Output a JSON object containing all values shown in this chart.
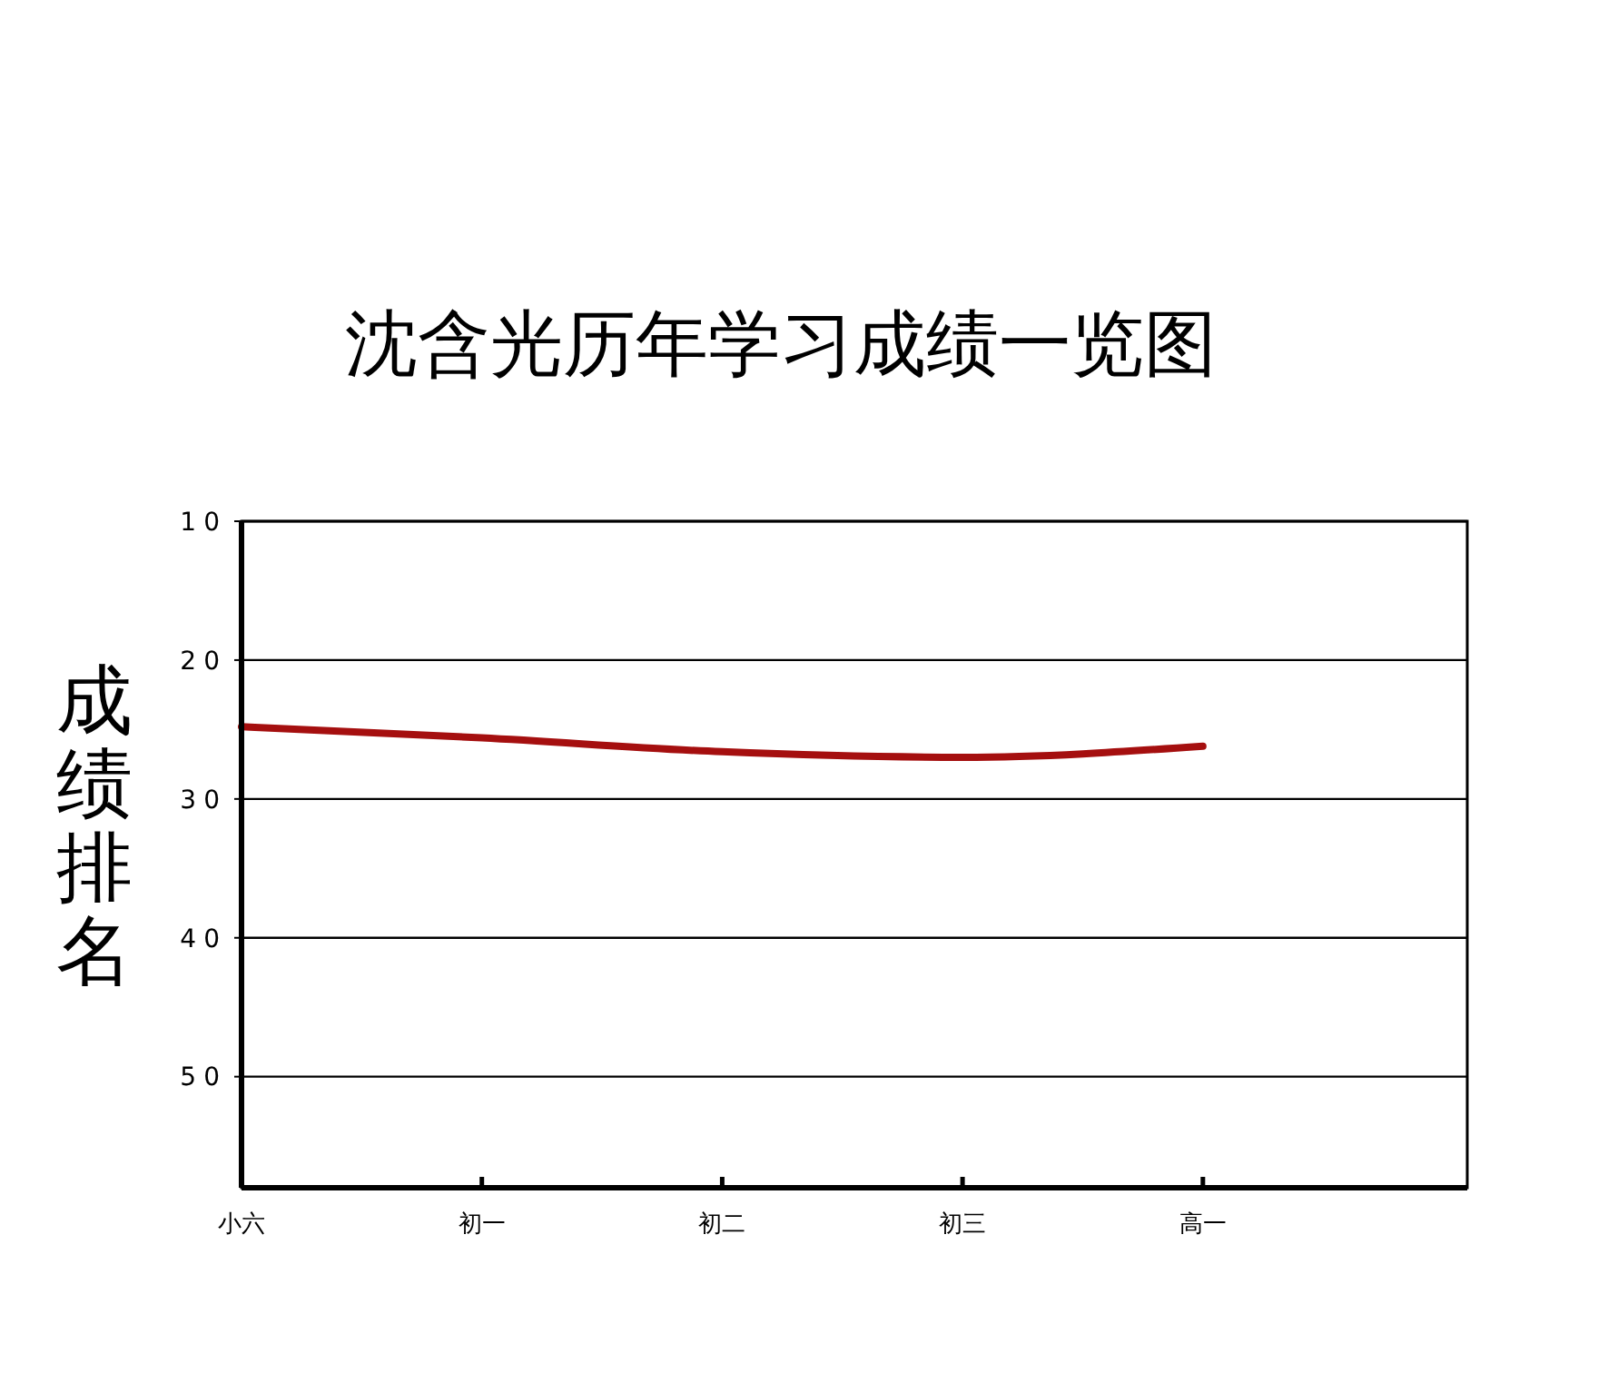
{
  "chart_data": {
    "type": "line",
    "title": "沈含光历年学习成绩一览图",
    "ylabel": "成绩排名",
    "categories": [
      "小六",
      "初一",
      "初二",
      "初三",
      "高一"
    ],
    "series": [
      {
        "color": "#a50f0f",
        "values": [
          24.8,
          25.6,
          26.6,
          27,
          26.2
        ]
      }
    ],
    "ylim": [
      58,
      10
    ],
    "yticks": [
      10,
      20,
      30,
      40,
      50
    ],
    "grid": "y",
    "marker": "none",
    "line_style": "solid"
  }
}
